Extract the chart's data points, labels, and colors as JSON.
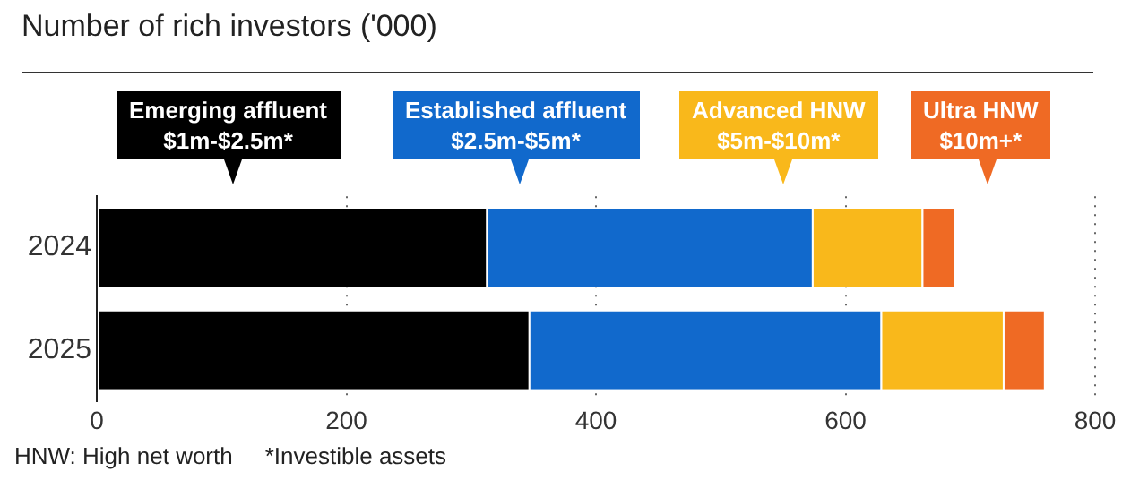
{
  "chart_data": {
    "type": "bar",
    "title": "Number of rich investors ('000)",
    "orientation": "horizontal",
    "stacked": true,
    "categories": [
      "2024",
      "2025"
    ],
    "series": [
      {
        "name": "Emerging affluent\n$1m-$2.5m*",
        "color": "#000000",
        "values": [
          312,
          346
        ]
      },
      {
        "name": "Established affluent\n$2.5m-$5m*",
        "color": "#1169cc",
        "values": [
          261,
          282
        ]
      },
      {
        "name": "Advanced HNW\n$5m-$10m*",
        "color": "#f9b81b",
        "values": [
          88,
          98
        ]
      },
      {
        "name": "Ultra HNW\n$10m+*",
        "color": "#ef6a24",
        "values": [
          26,
          33
        ]
      }
    ],
    "xlim": [
      0,
      800
    ],
    "xticks": [
      0,
      200,
      400,
      600,
      800
    ],
    "grid": "x",
    "legend": "top",
    "annotations": [
      "HNW: High net worth",
      "*Investible assets"
    ]
  }
}
